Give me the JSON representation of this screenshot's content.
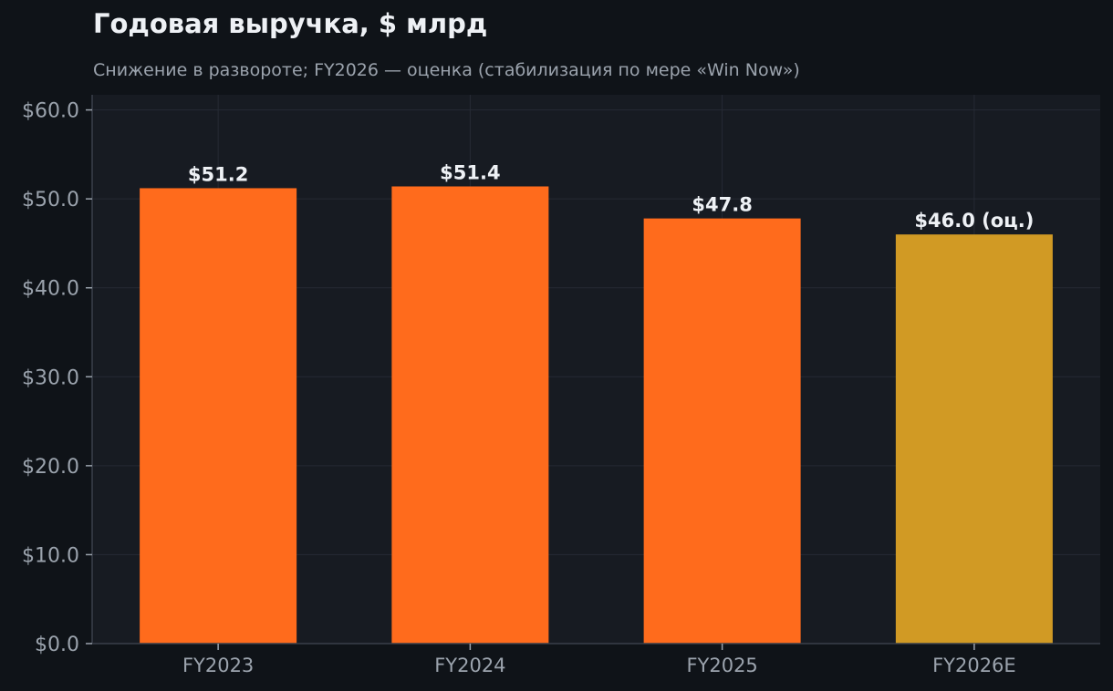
{
  "title": "Годовая выручка, $ млрд",
  "subtitle": "Снижение в развороте; FY2026 — оценка (стабилизация по мере «Win Now»)",
  "colors": {
    "background": "#0f1318",
    "plot_background": "#171b22",
    "grid": "#262b34",
    "axis": "#3a404a",
    "tick_text": "#9ba3ad",
    "label_text": "#eef1f5",
    "actual_bar": "#ff6b1c",
    "estimate_bar": "#d19a24"
  },
  "chart_data": {
    "type": "bar",
    "categories": [
      "FY2023",
      "FY2024",
      "FY2025",
      "FY2026E"
    ],
    "values": [
      51.2,
      51.4,
      47.8,
      46.0
    ],
    "estimate": [
      false,
      false,
      false,
      true
    ],
    "value_labels": [
      "$51.2",
      "$51.4",
      "$47.8",
      "$46.0 (оц.)"
    ],
    "ylim": [
      0,
      60
    ],
    "yticks": [
      0,
      10,
      20,
      30,
      40,
      50,
      60
    ],
    "ytick_labels": [
      "$0.0",
      "$10.0",
      "$20.0",
      "$30.0",
      "$40.0",
      "$50.0",
      "$60.0"
    ],
    "grid": true,
    "xlabel": "",
    "ylabel": ""
  }
}
